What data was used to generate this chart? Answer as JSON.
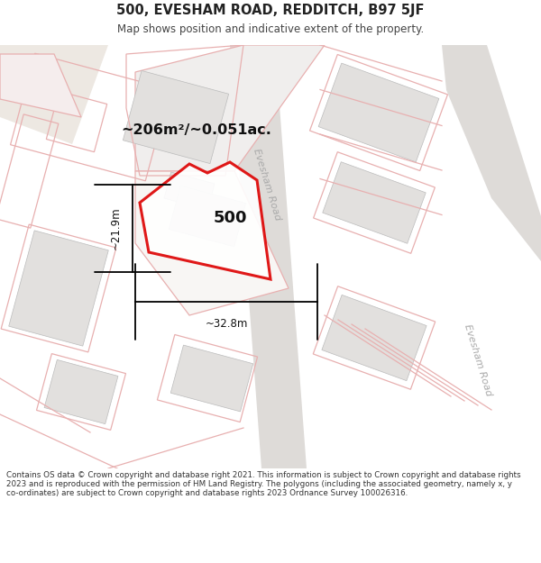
{
  "title_line1": "500, EVESHAM ROAD, REDDITCH, B97 5JF",
  "title_line2": "Map shows position and indicative extent of the property.",
  "footer_text": "Contains OS data © Crown copyright and database right 2021. This information is subject to Crown copyright and database rights 2023 and is reproduced with the permission of HM Land Registry. The polygons (including the associated geometry, namely x, y co-ordinates) are subject to Crown copyright and database rights 2023 Ordnance Survey 100026316.",
  "map_bg": "#f7f5f3",
  "building_fill": "#e2e0de",
  "building_edge": "#cccccc",
  "plot_outline_color": "#dd0000",
  "pink_line_color": "#e8b0b0",
  "pink_fill_color": "#f5eded",
  "road_stripe_color": "#dedbd8",
  "road_label_color": "#aaaaaa",
  "tan_fill": "#ede8e2",
  "area_text": "~206m²/~0.051ac.",
  "plot_number": "500",
  "dim_width": "~32.8m",
  "dim_height": "~21.9m",
  "road_name1": "Evesham Road",
  "road_name2": "Evesham Road"
}
